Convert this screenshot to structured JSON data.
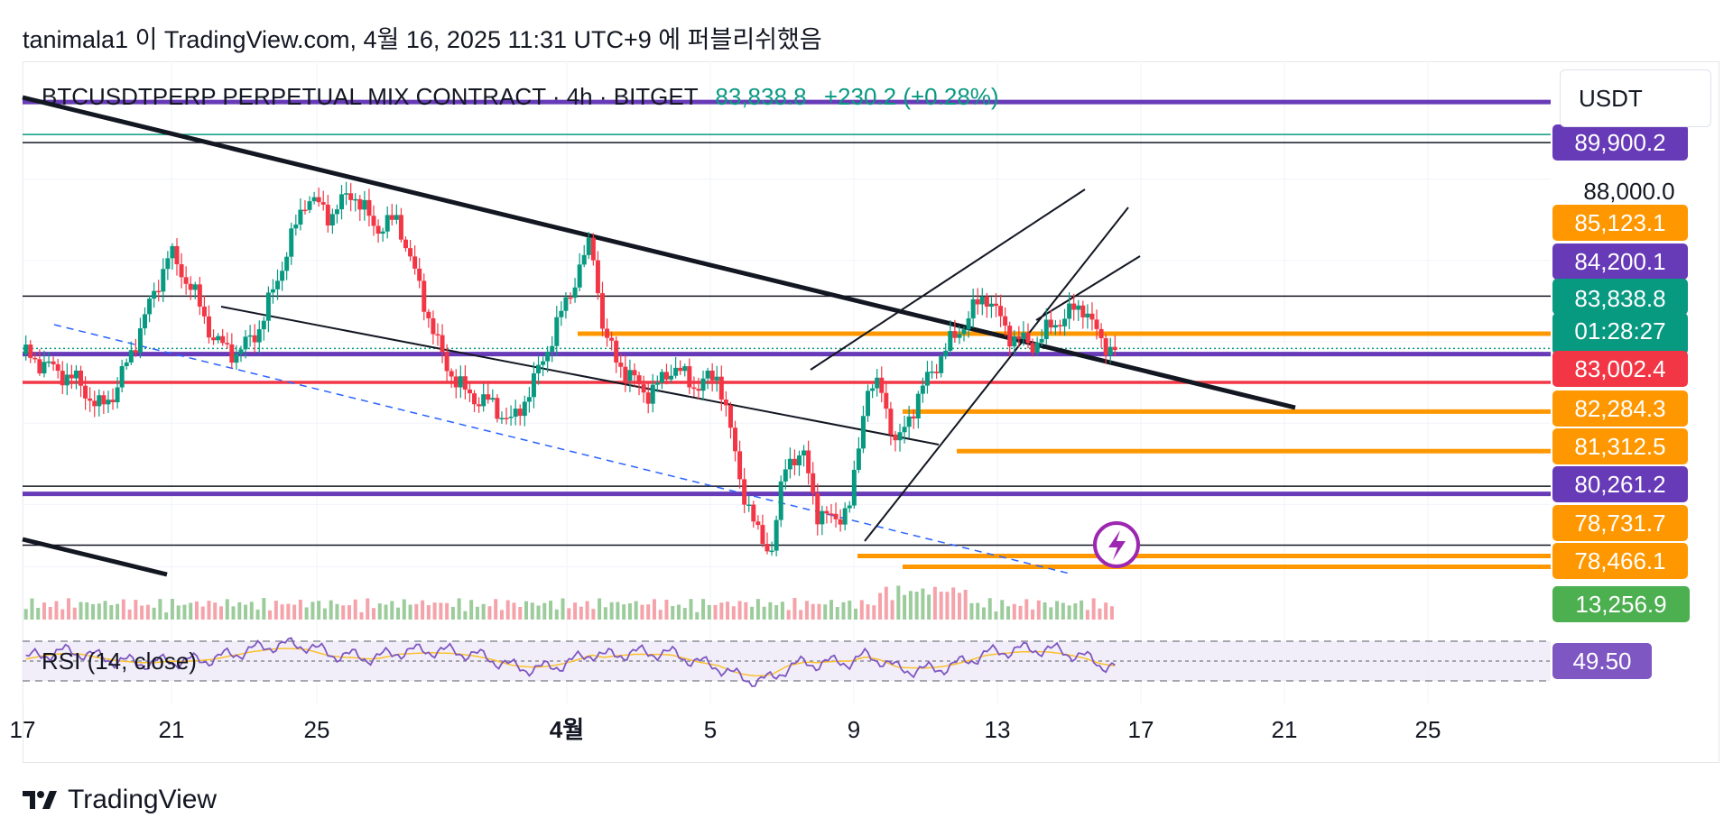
{
  "header": {
    "text": "tanimala1 이 TradingView.com, 4월 16, 2025 11:31 UTC+9 에 퍼블리쉬했음"
  },
  "legend": {
    "symbol": "BTCUSDTPERP PERPETUAL MIX CONTRACT · 4h · BITGET",
    "last": "83,838.8",
    "change": "+230.2 (+0.28%)"
  },
  "currency": {
    "label": "USDT"
  },
  "price_scale": {
    "plain_tick": "88,000.0",
    "labels": [
      {
        "text": "89,900.2",
        "color": "#673ab7"
      },
      {
        "text": "85,123.1",
        "color": "#ff9800"
      },
      {
        "text": "84,200.1",
        "color": "#673ab7"
      },
      {
        "text": "83,838.8",
        "color": "#089981"
      },
      {
        "text": "01:28:27",
        "color": "#089981"
      },
      {
        "text": "83,002.4",
        "color": "#f23645"
      },
      {
        "text": "82,284.3",
        "color": "#ff9800"
      },
      {
        "text": "81,312.5",
        "color": "#ff9800"
      },
      {
        "text": "80,261.2",
        "color": "#673ab7"
      },
      {
        "text": "78,731.7",
        "color": "#ff9800"
      },
      {
        "text": "78,466.1",
        "color": "#ff9800"
      },
      {
        "text": "13,256.9",
        "color": "#4caf50"
      },
      {
        "text": "49.50",
        "color": "#7e57c2"
      }
    ]
  },
  "rsi": {
    "label": "RSI (14, close)"
  },
  "time_axis": {
    "labels": [
      "17",
      "21",
      "25",
      "4월",
      "5",
      "9",
      "13",
      "17",
      "21",
      "25"
    ]
  },
  "footer": {
    "brand": "TradingView"
  },
  "colors": {
    "up": "#089981",
    "down": "#f23645",
    "purple": "#673ab7",
    "orange": "#ff9800",
    "red": "#f23645"
  },
  "chart_data": {
    "type": "candlestick",
    "symbol": "BTCUSDTPERP",
    "exchange": "BITGET",
    "timeframe": "4h",
    "last_price": 83838.8,
    "ylim": [
      78300,
      90900
    ],
    "horizontal_levels": [
      89900.2,
      88900,
      85123.1,
      84200.1,
      83838.8,
      83002.4,
      82284.3,
      81312.5,
      80261.2,
      78731.7,
      78466.1
    ],
    "x_labels": [
      "17",
      "21",
      "25",
      "4월",
      "5",
      "9",
      "13",
      "17",
      "21",
      "25"
    ],
    "price_path": [
      [
        0,
        83700
      ],
      [
        18,
        83350
      ],
      [
        36,
        83000
      ],
      [
        48,
        82350
      ],
      [
        60,
        82800
      ],
      [
        78,
        84500
      ],
      [
        95,
        86200
      ],
      [
        110,
        85300
      ],
      [
        125,
        84000
      ],
      [
        140,
        83700
      ],
      [
        155,
        84400
      ],
      [
        170,
        86000
      ],
      [
        185,
        87600
      ],
      [
        200,
        87100
      ],
      [
        215,
        87700
      ],
      [
        230,
        86800
      ],
      [
        245,
        87000
      ],
      [
        260,
        85200
      ],
      [
        275,
        83500
      ],
      [
        290,
        82700
      ],
      [
        305,
        82500
      ],
      [
        320,
        82000
      ],
      [
        335,
        83100
      ],
      [
        350,
        84500
      ],
      [
        365,
        85900
      ],
      [
        372,
        86500
      ],
      [
        380,
        84100
      ],
      [
        395,
        83200
      ],
      [
        410,
        82700
      ],
      [
        425,
        83400
      ],
      [
        440,
        82900
      ],
      [
        455,
        83200
      ],
      [
        470,
        80500
      ],
      [
        480,
        79300
      ],
      [
        490,
        78900
      ],
      [
        500,
        81200
      ],
      [
        512,
        81100
      ],
      [
        520,
        79800
      ],
      [
        530,
        79600
      ],
      [
        542,
        80000
      ],
      [
        552,
        82900
      ],
      [
        562,
        82800
      ],
      [
        572,
        81400
      ],
      [
        585,
        82600
      ],
      [
        600,
        83600
      ],
      [
        615,
        84400
      ],
      [
        630,
        85200
      ],
      [
        645,
        84200
      ],
      [
        660,
        83900
      ],
      [
        680,
        84600
      ],
      [
        695,
        84900
      ],
      [
        705,
        84000
      ],
      [
        715,
        83850
      ]
    ],
    "volume_last": 13256.9,
    "rsi": {
      "period": 14,
      "last": 49.5,
      "upper": 70,
      "lower": 30
    }
  }
}
